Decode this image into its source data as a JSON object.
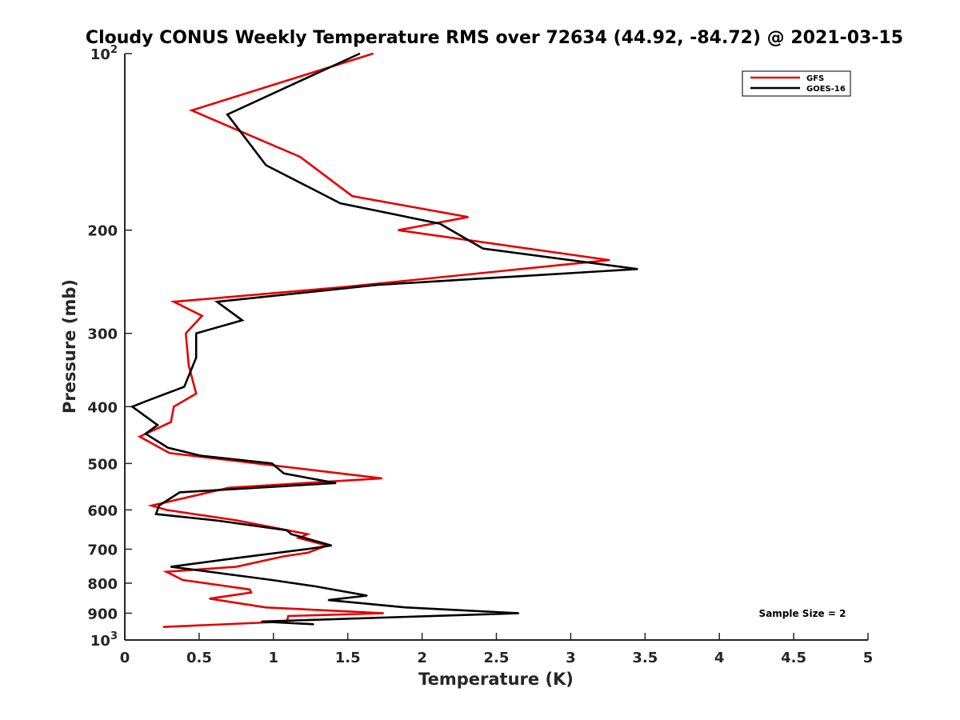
{
  "chart_data": {
    "type": "line",
    "title": "Cloudy CONUS Weekly Temperature RMS over 72634 (44.92, -84.72) @ 2021-03-15",
    "xlabel": "Temperature (K)",
    "ylabel": "Pressure (mb)",
    "xlim": [
      0,
      5
    ],
    "ylim": [
      100,
      1000
    ],
    "y_scale": "log",
    "y_reversed": true,
    "x_ticks": [
      0,
      0.5,
      1,
      1.5,
      2,
      2.5,
      3,
      3.5,
      4,
      4.5,
      5
    ],
    "x_tick_labels": [
      "0",
      "0.5",
      "1",
      "1.5",
      "2",
      "2.5",
      "3",
      "3.5",
      "4",
      "4.5",
      "5"
    ],
    "y_ticks": [
      {
        "value": 100,
        "base": "10",
        "exp": "2"
      },
      {
        "value": 200,
        "label": "200"
      },
      {
        "value": 300,
        "label": "300"
      },
      {
        "value": 400,
        "label": "400"
      },
      {
        "value": 500,
        "label": "500"
      },
      {
        "value": 600,
        "label": "600"
      },
      {
        "value": 700,
        "label": "700"
      },
      {
        "value": 800,
        "label": "800"
      },
      {
        "value": 900,
        "label": "900"
      },
      {
        "value": 1000,
        "base": "10",
        "exp": "3"
      }
    ],
    "grid": false,
    "legend_position": "top-right",
    "annotation": "Sample Size = 2",
    "series": [
      {
        "name": "GFS",
        "color": "#e60000",
        "points": [
          [
            1.67,
            100
          ],
          [
            0.45,
            125
          ],
          [
            1.18,
            150
          ],
          [
            1.53,
            175
          ],
          [
            2.31,
            190
          ],
          [
            1.84,
            200
          ],
          [
            3.26,
            225
          ],
          [
            1.48,
            250
          ],
          [
            0.33,
            265
          ],
          [
            0.52,
            280
          ],
          [
            0.41,
            300
          ],
          [
            0.43,
            340
          ],
          [
            0.48,
            380
          ],
          [
            0.33,
            400
          ],
          [
            0.31,
            425
          ],
          [
            0.1,
            450
          ],
          [
            0.3,
            480
          ],
          [
            1.73,
            530
          ],
          [
            0.7,
            550
          ],
          [
            0.18,
            590
          ],
          [
            0.28,
            600
          ],
          [
            0.75,
            625
          ],
          [
            1.23,
            660
          ],
          [
            1.17,
            670
          ],
          [
            1.36,
            690
          ],
          [
            1.23,
            710
          ],
          [
            1.07,
            720
          ],
          [
            0.75,
            750
          ],
          [
            0.28,
            765
          ],
          [
            0.39,
            790
          ],
          [
            0.84,
            820
          ],
          [
            0.85,
            830
          ],
          [
            0.57,
            850
          ],
          [
            0.95,
            880
          ],
          [
            1.74,
            900
          ],
          [
            1.1,
            910
          ],
          [
            1.09,
            930
          ],
          [
            0.26,
            950
          ]
        ]
      },
      {
        "name": "GOES-16",
        "color": "#000000",
        "points": [
          [
            1.58,
            100
          ],
          [
            0.69,
            127
          ],
          [
            0.95,
            155
          ],
          [
            1.45,
            180
          ],
          [
            2.12,
            195
          ],
          [
            2.41,
            215
          ],
          [
            3.45,
            233
          ],
          [
            1.7,
            248
          ],
          [
            0.62,
            265
          ],
          [
            0.79,
            285
          ],
          [
            0.48,
            300
          ],
          [
            0.48,
            330
          ],
          [
            0.4,
            370
          ],
          [
            0.16,
            390
          ],
          [
            0.05,
            400
          ],
          [
            0.22,
            430
          ],
          [
            0.14,
            445
          ],
          [
            0.29,
            470
          ],
          [
            0.51,
            485
          ],
          [
            0.99,
            500
          ],
          [
            1.07,
            520
          ],
          [
            1.42,
            540
          ],
          [
            0.37,
            560
          ],
          [
            0.23,
            590
          ],
          [
            0.21,
            610
          ],
          [
            0.61,
            625
          ],
          [
            1.09,
            650
          ],
          [
            1.12,
            660
          ],
          [
            1.39,
            690
          ],
          [
            1.22,
            700
          ],
          [
            0.75,
            725
          ],
          [
            0.31,
            750
          ],
          [
            0.99,
            790
          ],
          [
            1.28,
            810
          ],
          [
            1.63,
            840
          ],
          [
            1.37,
            855
          ],
          [
            1.89,
            880
          ],
          [
            2.65,
            900
          ],
          [
            0.92,
            930
          ],
          [
            1.27,
            940
          ]
        ]
      }
    ]
  }
}
